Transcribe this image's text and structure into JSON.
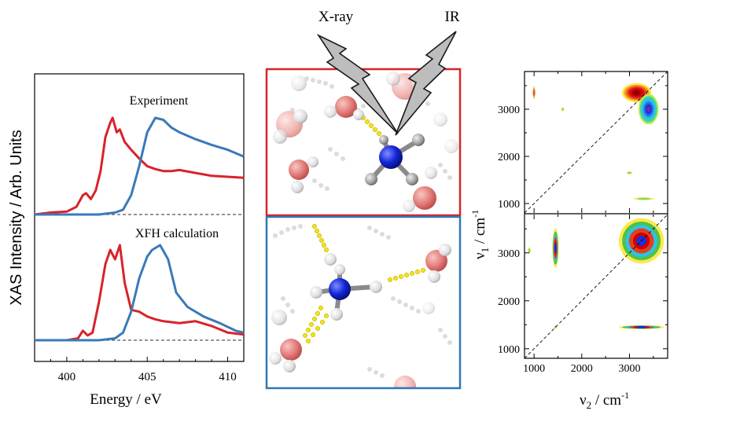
{
  "figure": {
    "xas_panel": {
      "ylabel": "XAS Intensity / Arb. Units",
      "xlabel": "Energy / eV",
      "label_experiment": "Experiment",
      "label_calculation": "XFH calculation"
    },
    "molecule_panel": {
      "label_xray": "X-ray",
      "label_ir": "IR"
    },
    "twod_panel": {
      "xlabel_main": "ν",
      "xlabel_sub": "2",
      "xlabel_unit": " / cm",
      "xlabel_sup": "-1",
      "ylabel_main": "ν",
      "ylabel_sub": "1",
      "ylabel_unit": " / cm",
      "ylabel_sup": "-1"
    }
  },
  "colors": {
    "red_trace": "#d8232a",
    "blue_trace": "#3a7ab8",
    "top_frame": "#d8232a",
    "bottom_frame": "#2f78b8",
    "baseline": "#555555"
  },
  "chart_data": [
    {
      "type": "line",
      "panel": "Experiment",
      "xlim": [
        398,
        411
      ],
      "ylim": [
        0,
        1
      ],
      "xticks": [
        "400",
        "405",
        "410"
      ],
      "series": [
        {
          "color": "red",
          "x": [
            398,
            399,
            400,
            400.6,
            401,
            401.2,
            401.5,
            401.8,
            402.1,
            402.4,
            402.7,
            402.85,
            403.1,
            403.3,
            403.6,
            404.0,
            404.5,
            405.0,
            405.5,
            406.0,
            406.5,
            407.0,
            408.0,
            409.0,
            410.0,
            411.0
          ],
          "y": [
            0.0,
            0.02,
            0.03,
            0.08,
            0.2,
            0.22,
            0.16,
            0.25,
            0.45,
            0.8,
            0.95,
            1.0,
            0.85,
            0.88,
            0.75,
            0.67,
            0.58,
            0.5,
            0.47,
            0.45,
            0.45,
            0.46,
            0.43,
            0.4,
            0.39,
            0.38
          ]
        },
        {
          "color": "blue",
          "x": [
            398,
            400,
            402,
            403,
            403.5,
            404.0,
            404.5,
            405.0,
            405.5,
            406.0,
            406.5,
            407.0,
            408.0,
            409.0,
            410.0,
            411.0
          ],
          "y": [
            0.0,
            0.0,
            0.0,
            0.02,
            0.05,
            0.2,
            0.5,
            0.85,
            1.0,
            0.98,
            0.9,
            0.85,
            0.78,
            0.72,
            0.67,
            0.6
          ]
        }
      ]
    },
    {
      "type": "line",
      "panel": "XFH calculation",
      "xlim": [
        398,
        411
      ],
      "ylim": [
        0,
        1
      ],
      "xticks": [
        "400",
        "405",
        "410"
      ],
      "series": [
        {
          "color": "red",
          "x": [
            398,
            400,
            400.7,
            401.0,
            401.3,
            401.6,
            402.0,
            402.4,
            402.7,
            403.0,
            403.3,
            403.6,
            404.0,
            404.5,
            405.0,
            405.5,
            406.0,
            407.0,
            408.0,
            409.0,
            410.0,
            411.0
          ],
          "y": [
            0.0,
            0.0,
            0.02,
            0.1,
            0.05,
            0.08,
            0.4,
            0.8,
            0.95,
            0.85,
            1.0,
            0.6,
            0.32,
            0.3,
            0.25,
            0.22,
            0.2,
            0.18,
            0.2,
            0.15,
            0.08,
            0.06
          ]
        },
        {
          "color": "blue",
          "x": [
            398,
            402,
            403,
            403.5,
            404.0,
            404.5,
            405.0,
            405.3,
            405.8,
            406.3,
            406.8,
            407.5,
            408.5,
            409.5,
            410.5,
            411.0
          ],
          "y": [
            0.0,
            0.0,
            0.02,
            0.08,
            0.3,
            0.65,
            0.88,
            0.95,
            1.0,
            0.85,
            0.5,
            0.35,
            0.25,
            0.18,
            0.1,
            0.08
          ]
        }
      ]
    },
    {
      "type": "heatmap",
      "panel": "2D spectrum (top)",
      "xlim": [
        800,
        3800
      ],
      "ylim": [
        800,
        3800
      ],
      "xticks": [],
      "yticks": [
        "1000",
        "2000",
        "3000"
      ],
      "diagonal": true,
      "features": [
        {
          "x": 3150,
          "y": 3350,
          "sx": 230,
          "sy": 150,
          "kind": "strong"
        },
        {
          "x": 3400,
          "y": 3000,
          "sx": 150,
          "sy": 230,
          "kind": "blue"
        },
        {
          "x": 1000,
          "y": 3350,
          "sx": 20,
          "sy": 120,
          "kind": "weak"
        },
        {
          "x": 1600,
          "y": 3000,
          "sx": 20,
          "sy": 40,
          "kind": "faint"
        },
        {
          "x": 3000,
          "y": 1650,
          "sx": 60,
          "sy": 20,
          "kind": "faint"
        },
        {
          "x": 3300,
          "y": 1100,
          "sx": 200,
          "sy": 20,
          "kind": "faint"
        }
      ]
    },
    {
      "type": "heatmap",
      "panel": "2D spectrum (bottom)",
      "xlim": [
        800,
        3800
      ],
      "ylim": [
        800,
        3800
      ],
      "xticks": [
        "1000",
        "2000",
        "3000"
      ],
      "yticks": [
        "1000",
        "2000",
        "3000"
      ],
      "diagonal": true,
      "features": [
        {
          "x": 1450,
          "y": 3100,
          "sx": 50,
          "sy": 300,
          "kind": "mixed"
        },
        {
          "x": 900,
          "y": 3050,
          "sx": 20,
          "sy": 60,
          "kind": "faint"
        },
        {
          "x": 3250,
          "y": 3250,
          "sx": 350,
          "sy": 350,
          "kind": "mixed"
        },
        {
          "x": 3250,
          "y": 1450,
          "sx": 350,
          "sy": 30,
          "kind": "mixed"
        },
        {
          "x": 1450,
          "y": 1450,
          "sx": 20,
          "sy": 30,
          "kind": "faint"
        }
      ]
    }
  ]
}
